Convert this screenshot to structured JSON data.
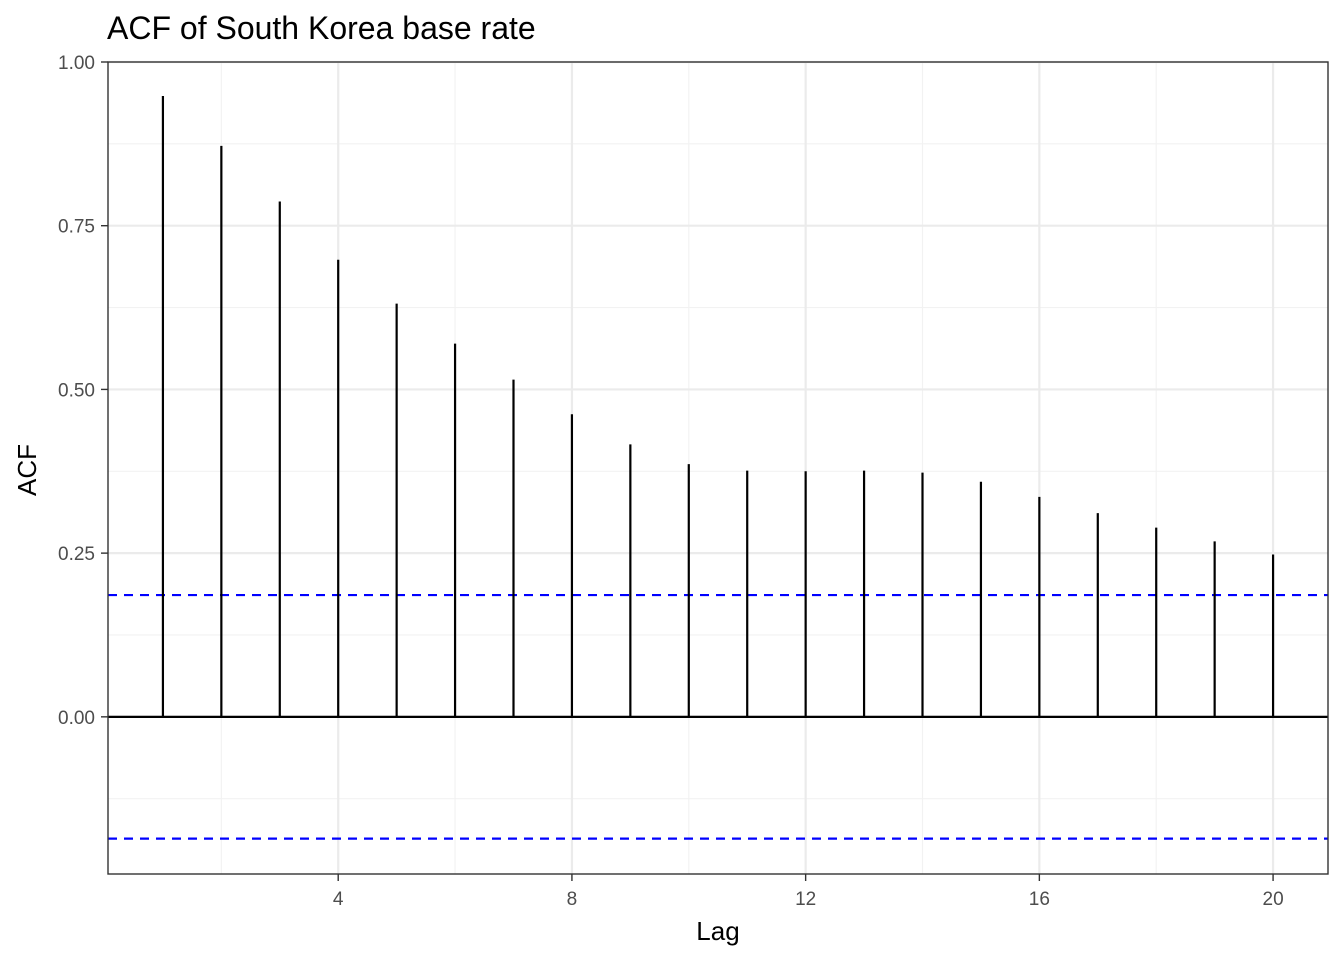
{
  "chart_data": {
    "type": "bar",
    "subtype": "acf-stem",
    "title": "ACF of South Korea base rate",
    "xlabel": "Lag",
    "ylabel": "ACF",
    "x": [
      1,
      2,
      3,
      4,
      5,
      6,
      7,
      8,
      9,
      10,
      11,
      12,
      13,
      14,
      15,
      16,
      17,
      18,
      19,
      20
    ],
    "values": [
      0.948,
      0.872,
      0.787,
      0.698,
      0.631,
      0.57,
      0.515,
      0.462,
      0.416,
      0.386,
      0.376,
      0.375,
      0.376,
      0.373,
      0.359,
      0.336,
      0.311,
      0.289,
      0.268,
      0.248
    ],
    "confidence_bound": 0.186,
    "xlim": [
      0.06,
      20.94
    ],
    "ylim": [
      -0.24,
      1.0
    ],
    "x_ticks": [
      4,
      8,
      12,
      16,
      20
    ],
    "x_tick_labels": [
      "4",
      "8",
      "12",
      "16",
      "20"
    ],
    "y_ticks": [
      0.0,
      0.25,
      0.5,
      0.75,
      1.0
    ],
    "y_tick_labels": [
      "0.00",
      "0.25",
      "0.50",
      "0.75",
      "1.00"
    ],
    "grid": true,
    "colors": {
      "stem": "#000000",
      "zero_line": "#000000",
      "confidence": "#0000ff",
      "grid_major": "#ebebeb",
      "grid_minor": "#f2f2f2",
      "panel_border": "#333333",
      "tick_text": "#4d4d4d"
    }
  }
}
